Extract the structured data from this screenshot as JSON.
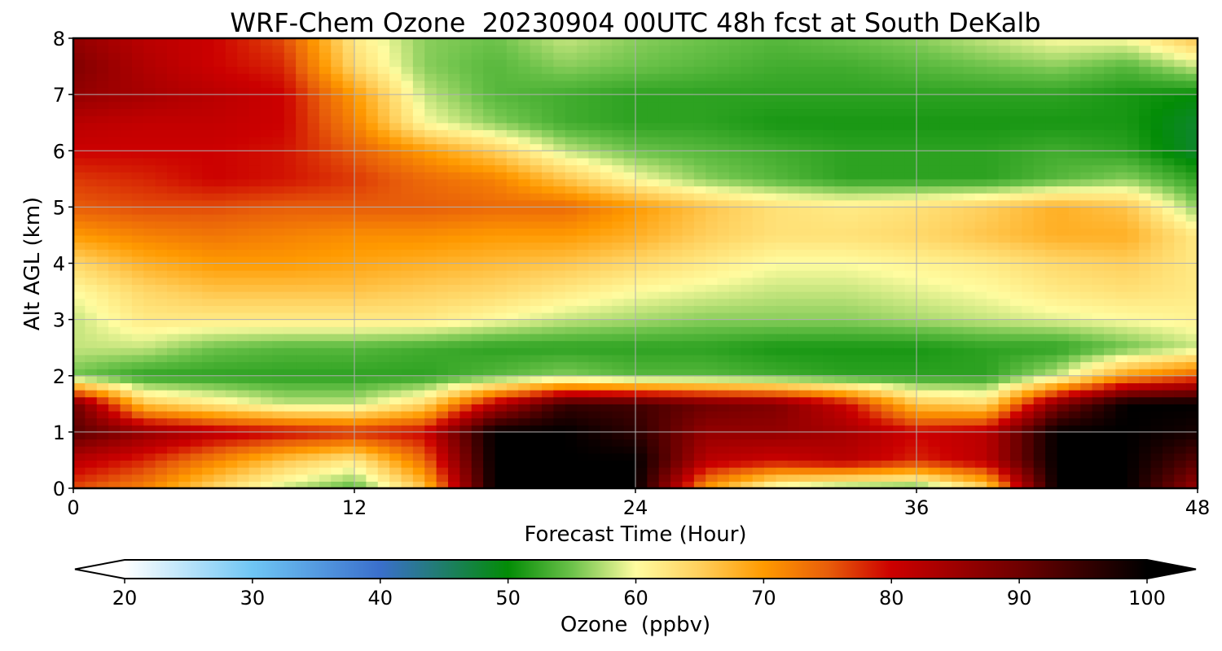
{
  "chart_data": {
    "type": "heatmap",
    "title": "WRF-Chem Ozone  20230904 00UTC 48h fcst at South DeKalb",
    "xlabel": "Forecast Time (Hour)",
    "ylabel": "Alt AGL (km)",
    "xlim": [
      0,
      48
    ],
    "ylim": [
      0,
      8
    ],
    "x_ticks": [
      0,
      12,
      24,
      36,
      48
    ],
    "y_ticks": [
      0,
      1,
      2,
      3,
      4,
      5,
      6,
      7,
      8
    ],
    "grid": true,
    "colorbar": {
      "label": "Ozone  (ppbv)",
      "orientation": "horizontal",
      "placement": "bottom",
      "min": 20,
      "max": 100,
      "ticks": [
        20,
        30,
        40,
        50,
        60,
        70,
        80,
        90,
        100
      ],
      "extend": "both",
      "stops": [
        {
          "value": 20,
          "color": "#ffffff"
        },
        {
          "value": 30,
          "color": "#6fc6f4"
        },
        {
          "value": 40,
          "color": "#3a6fcc"
        },
        {
          "value": 50,
          "color": "#038c06"
        },
        {
          "value": 55,
          "color": "#6cc24a"
        },
        {
          "value": 60,
          "color": "#fffca0"
        },
        {
          "value": 65,
          "color": "#ffcf5c"
        },
        {
          "value": 70,
          "color": "#ff9a00"
        },
        {
          "value": 75,
          "color": "#e85e0a"
        },
        {
          "value": 80,
          "color": "#cc0000"
        },
        {
          "value": 90,
          "color": "#6e0000"
        },
        {
          "value": 100,
          "color": "#000000"
        }
      ]
    },
    "x_hours": [
      0,
      3,
      6,
      9,
      12,
      15,
      18,
      21,
      24,
      27,
      30,
      33,
      36,
      39,
      42,
      45,
      48
    ],
    "y_km": [
      0,
      0.5,
      1,
      1.5,
      2,
      2.5,
      3,
      3.5,
      4,
      4.5,
      5,
      5.5,
      6,
      6.5,
      7,
      7.5,
      8
    ],
    "values": [
      [
        76,
        72,
        64,
        58,
        54,
        66,
        100,
        100,
        100,
        70,
        58,
        55,
        54,
        64,
        100,
        100,
        85
      ],
      [
        82,
        78,
        72,
        66,
        62,
        74,
        100,
        100,
        100,
        82,
        80,
        82,
        78,
        82,
        100,
        100,
        92
      ],
      [
        92,
        86,
        82,
        80,
        78,
        80,
        100,
        100,
        96,
        86,
        86,
        84,
        80,
        82,
        100,
        100,
        98
      ],
      [
        90,
        66,
        62,
        58,
        58,
        64,
        82,
        95,
        94,
        90,
        88,
        80,
        66,
        64,
        88,
        100,
        100
      ],
      [
        55,
        52,
        52,
        52,
        52,
        52,
        54,
        56,
        54,
        54,
        53,
        52,
        52,
        52,
        58,
        70,
        75
      ],
      [
        58,
        58,
        55,
        54,
        54,
        53,
        52,
        52,
        52,
        52,
        51,
        51,
        51,
        52,
        52,
        55,
        58
      ],
      [
        58,
        62,
        62,
        62,
        62,
        62,
        60,
        58,
        57,
        56,
        56,
        56,
        57,
        58,
        59,
        60,
        61
      ],
      [
        60,
        64,
        66,
        66,
        66,
        65,
        64,
        62,
        60,
        59,
        58,
        58,
        59,
        60,
        62,
        63,
        62
      ],
      [
        64,
        68,
        70,
        70,
        69,
        68,
        67,
        66,
        64,
        62,
        60,
        60,
        61,
        62,
        64,
        65,
        62
      ],
      [
        70,
        72,
        73,
        72,
        71,
        71,
        70,
        70,
        68,
        65,
        63,
        63,
        64,
        66,
        68,
        68,
        62
      ],
      [
        75,
        76,
        76,
        75,
        75,
        75,
        74,
        74,
        70,
        66,
        63,
        62,
        63,
        65,
        68,
        66,
        56
      ],
      [
        77,
        78,
        80,
        79,
        77,
        74,
        72,
        66,
        60,
        56,
        54,
        52,
        52,
        52,
        54,
        56,
        52
      ],
      [
        80,
        80,
        80,
        79,
        75,
        70,
        65,
        58,
        55,
        54,
        53,
        52,
        52,
        52,
        53,
        52,
        48
      ],
      [
        82,
        81,
        81,
        80,
        72,
        60,
        56,
        53,
        52,
        52,
        51,
        51,
        51,
        51,
        51,
        51,
        48
      ],
      [
        86,
        84,
        82,
        80,
        70,
        58,
        54,
        53,
        52,
        52,
        52,
        52,
        52,
        52,
        52,
        51,
        50
      ],
      [
        88,
        83,
        80,
        78,
        64,
        56,
        54,
        56,
        55,
        54,
        53,
        53,
        54,
        55,
        56,
        54,
        58
      ],
      [
        86,
        82,
        80,
        76,
        62,
        56,
        55,
        58,
        56,
        55,
        54,
        55,
        56,
        58,
        60,
        60,
        66
      ]
    ]
  }
}
